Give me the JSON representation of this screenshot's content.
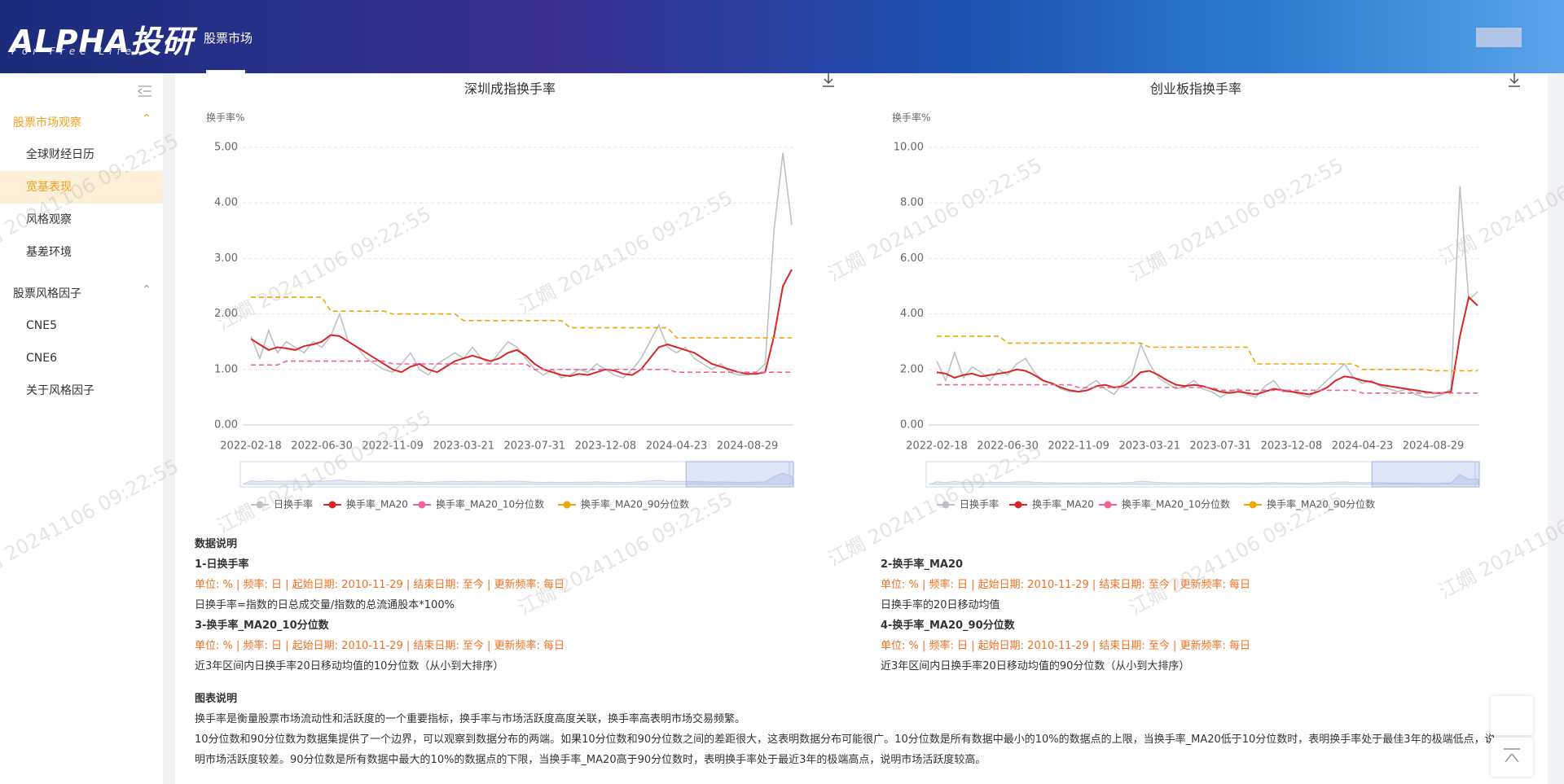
{
  "header": {
    "logo": "ALPHA投研",
    "tagline": "For Free Life",
    "nav": [
      "股票市场"
    ]
  },
  "sidebar": {
    "groups": [
      {
        "title": "股票市场观察",
        "items": [
          "全球财经日历",
          "宽基表现",
          "风格观察",
          "基差环境"
        ]
      },
      {
        "title": "股票风格因子",
        "items": [
          "CNE5",
          "CNE6",
          "关于风格因子"
        ]
      }
    ],
    "active": "宽基表现"
  },
  "watermark": "江嫺 20241106 09:22:55",
  "chart_data": [
    {
      "type": "line",
      "title": "深圳成指换手率",
      "y_label": "换手率%",
      "legend": "bottom",
      "grid": true,
      "categories": [
        "2022-02-18",
        null,
        null,
        null,
        null,
        null,
        null,
        null,
        "2022-06-30",
        null,
        null,
        null,
        null,
        null,
        null,
        null,
        "2022-11-09",
        null,
        null,
        null,
        null,
        null,
        null,
        null,
        "2023-03-21",
        null,
        null,
        null,
        null,
        null,
        null,
        null,
        "2023-07-31",
        null,
        null,
        null,
        null,
        null,
        null,
        null,
        "2023-12-08",
        null,
        null,
        null,
        null,
        null,
        null,
        null,
        "2024-04-23",
        null,
        null,
        null,
        null,
        null,
        null,
        null,
        "2024-08-29",
        null,
        null,
        null,
        null,
        null
      ],
      "ylim": [
        0,
        5
      ],
      "yticks": [
        {
          "value": 0,
          "label": "0.00"
        },
        {
          "value": 1,
          "label": "1.00"
        },
        {
          "value": 2,
          "label": "2.00"
        },
        {
          "value": 3,
          "label": "3.00"
        },
        {
          "value": 4,
          "label": "4.00"
        },
        {
          "value": 5,
          "label": "5.00"
        }
      ],
      "series": [
        {
          "name": "日换手率",
          "color": "#bcc0c9",
          "line_style": "solid",
          "values": [
            1.6,
            1.2,
            1.7,
            1.3,
            1.5,
            1.4,
            1.3,
            1.5,
            1.4,
            1.6,
            2.0,
            1.5,
            1.4,
            1.2,
            1.1,
            1.0,
            0.95,
            1.1,
            1.3,
            1.0,
            0.9,
            1.1,
            1.2,
            1.3,
            1.2,
            1.4,
            1.2,
            1.1,
            1.3,
            1.5,
            1.4,
            1.2,
            1.0,
            0.9,
            1.0,
            0.85,
            0.9,
            1.0,
            0.95,
            1.1,
            1.0,
            0.9,
            0.85,
            1.0,
            1.2,
            1.5,
            1.8,
            1.4,
            1.3,
            1.4,
            1.2,
            1.1,
            1.0,
            1.1,
            0.95,
            0.9,
            0.9,
            0.95,
            1.1,
            3.5,
            4.9,
            3.6
          ]
        },
        {
          "name": "换手率_MA20",
          "color": "#d62728",
          "line_style": "solid",
          "values": [
            1.55,
            1.45,
            1.35,
            1.4,
            1.38,
            1.35,
            1.42,
            1.45,
            1.5,
            1.62,
            1.6,
            1.5,
            1.4,
            1.3,
            1.2,
            1.1,
            1.0,
            0.95,
            1.05,
            1.1,
            1.0,
            0.95,
            1.05,
            1.15,
            1.2,
            1.25,
            1.2,
            1.15,
            1.2,
            1.3,
            1.35,
            1.25,
            1.1,
            1.0,
            0.95,
            0.9,
            0.88,
            0.92,
            0.9,
            0.95,
            1.0,
            0.98,
            0.92,
            0.9,
            1.0,
            1.2,
            1.4,
            1.45,
            1.4,
            1.35,
            1.3,
            1.2,
            1.1,
            1.05,
            1.0,
            0.95,
            0.92,
            0.92,
            0.95,
            1.6,
            2.5,
            2.8
          ]
        },
        {
          "name": "换手率_MA20_10分位数",
          "color": "#f0609a",
          "line_style": "dashed",
          "values": [
            1.08,
            1.08,
            1.08,
            1.08,
            1.15,
            1.15,
            1.15,
            1.15,
            1.15,
            1.15,
            1.15,
            1.15,
            1.15,
            1.15,
            1.15,
            1.15,
            1.1,
            1.1,
            1.1,
            1.1,
            1.1,
            1.1,
            1.1,
            1.1,
            1.1,
            1.1,
            1.1,
            1.1,
            1.1,
            1.1,
            1.1,
            1.1,
            1.0,
            1.0,
            1.0,
            1.0,
            1.0,
            1.0,
            1.0,
            1.0,
            1.0,
            1.0,
            1.0,
            1.0,
            1.0,
            1.0,
            1.0,
            1.0,
            0.95,
            0.95,
            0.95,
            0.95,
            0.95,
            0.95,
            0.95,
            0.95,
            0.95,
            0.95,
            0.95,
            0.95,
            0.95,
            0.95
          ]
        },
        {
          "name": "换手率_MA20_90分位数",
          "color": "#f0a500",
          "line_style": "dashed",
          "values": [
            2.3,
            2.3,
            2.3,
            2.3,
            2.3,
            2.3,
            2.3,
            2.3,
            2.3,
            2.05,
            2.05,
            2.05,
            2.05,
            2.05,
            2.05,
            2.05,
            2.0,
            2.0,
            2.0,
            2.0,
            2.0,
            2.0,
            2.0,
            2.0,
            1.88,
            1.88,
            1.88,
            1.88,
            1.88,
            1.88,
            1.88,
            1.88,
            1.88,
            1.88,
            1.88,
            1.88,
            1.75,
            1.75,
            1.75,
            1.75,
            1.75,
            1.75,
            1.75,
            1.75,
            1.75,
            1.75,
            1.75,
            1.75,
            1.57,
            1.57,
            1.57,
            1.57,
            1.57,
            1.57,
            1.57,
            1.57,
            1.57,
            1.57,
            1.57,
            1.57,
            1.57,
            1.57
          ]
        }
      ]
    },
    {
      "type": "line",
      "title": "创业板指换手率",
      "y_label": "换手率%",
      "legend": "bottom",
      "grid": true,
      "categories": [
        "2022-02-18",
        null,
        null,
        null,
        null,
        null,
        null,
        null,
        "2022-06-30",
        null,
        null,
        null,
        null,
        null,
        null,
        null,
        "2022-11-09",
        null,
        null,
        null,
        null,
        null,
        null,
        null,
        "2023-03-21",
        null,
        null,
        null,
        null,
        null,
        null,
        null,
        "2023-07-31",
        null,
        null,
        null,
        null,
        null,
        null,
        null,
        "2023-12-08",
        null,
        null,
        null,
        null,
        null,
        null,
        null,
        "2024-04-23",
        null,
        null,
        null,
        null,
        null,
        null,
        null,
        "2024-08-29",
        null,
        null,
        null,
        null,
        null
      ],
      "ylim": [
        0,
        10
      ],
      "yticks": [
        {
          "value": 0,
          "label": "0.00"
        },
        {
          "value": 2,
          "label": "2.00"
        },
        {
          "value": 4,
          "label": "4.00"
        },
        {
          "value": 6,
          "label": "6.00"
        },
        {
          "value": 8,
          "label": "8.00"
        },
        {
          "value": 10,
          "label": "10.00"
        }
      ],
      "series": [
        {
          "name": "日换手率",
          "color": "#bcc0c9",
          "line_style": "solid",
          "values": [
            2.3,
            1.6,
            2.6,
            1.7,
            2.1,
            1.9,
            1.6,
            2.0,
            1.8,
            2.2,
            2.4,
            1.9,
            1.6,
            1.5,
            1.3,
            1.2,
            1.2,
            1.4,
            1.6,
            1.3,
            1.1,
            1.5,
            1.8,
            2.9,
            2.2,
            1.7,
            1.5,
            1.3,
            1.4,
            1.6,
            1.3,
            1.2,
            1.0,
            1.2,
            1.3,
            1.1,
            1.0,
            1.4,
            1.6,
            1.2,
            1.2,
            1.1,
            1.0,
            1.3,
            1.6,
            1.9,
            2.2,
            1.7,
            1.5,
            1.6,
            1.4,
            1.3,
            1.2,
            1.3,
            1.1,
            1.0,
            1.0,
            1.1,
            1.3,
            8.6,
            4.5,
            4.8
          ]
        },
        {
          "name": "换手率_MA20",
          "color": "#d62728",
          "line_style": "solid",
          "values": [
            1.9,
            1.85,
            1.7,
            1.8,
            1.85,
            1.75,
            1.8,
            1.85,
            1.9,
            2.0,
            1.95,
            1.8,
            1.6,
            1.5,
            1.35,
            1.25,
            1.2,
            1.25,
            1.4,
            1.45,
            1.35,
            1.4,
            1.6,
            1.9,
            1.95,
            1.8,
            1.6,
            1.45,
            1.4,
            1.45,
            1.4,
            1.3,
            1.2,
            1.15,
            1.2,
            1.15,
            1.1,
            1.2,
            1.3,
            1.25,
            1.2,
            1.15,
            1.1,
            1.2,
            1.35,
            1.6,
            1.75,
            1.7,
            1.6,
            1.55,
            1.45,
            1.4,
            1.35,
            1.3,
            1.25,
            1.2,
            1.15,
            1.15,
            1.2,
            3.2,
            4.6,
            4.3
          ]
        },
        {
          "name": "换手率_MA20_10分位数",
          "color": "#f0609a",
          "line_style": "dashed",
          "values": [
            1.45,
            1.45,
            1.45,
            1.45,
            1.45,
            1.45,
            1.45,
            1.45,
            1.45,
            1.45,
            1.45,
            1.45,
            1.45,
            1.45,
            1.45,
            1.45,
            1.35,
            1.35,
            1.35,
            1.35,
            1.35,
            1.35,
            1.35,
            1.35,
            1.35,
            1.35,
            1.35,
            1.35,
            1.35,
            1.35,
            1.35,
            1.35,
            1.25,
            1.25,
            1.25,
            1.25,
            1.25,
            1.25,
            1.25,
            1.25,
            1.25,
            1.25,
            1.25,
            1.25,
            1.25,
            1.25,
            1.25,
            1.25,
            1.15,
            1.15,
            1.15,
            1.15,
            1.15,
            1.15,
            1.15,
            1.15,
            1.15,
            1.15,
            1.15,
            1.15,
            1.15,
            1.15
          ]
        },
        {
          "name": "换手率_MA20_90分位数",
          "color": "#f0a500",
          "line_style": "dashed",
          "values": [
            3.2,
            3.2,
            3.2,
            3.2,
            3.2,
            3.2,
            3.2,
            3.2,
            2.95,
            2.95,
            2.95,
            2.95,
            2.95,
            2.95,
            2.95,
            2.95,
            2.95,
            2.95,
            2.95,
            2.95,
            2.95,
            2.95,
            2.95,
            2.95,
            2.8,
            2.8,
            2.8,
            2.8,
            2.8,
            2.8,
            2.8,
            2.8,
            2.8,
            2.8,
            2.8,
            2.8,
            2.2,
            2.2,
            2.2,
            2.2,
            2.2,
            2.2,
            2.2,
            2.2,
            2.2,
            2.2,
            2.2,
            2.2,
            2.0,
            2.0,
            2.0,
            2.0,
            2.0,
            2.0,
            2.0,
            2.0,
            1.95,
            1.95,
            1.95,
            1.95,
            1.95,
            1.95
          ]
        }
      ]
    }
  ],
  "data_notes": {
    "title": "数据说明",
    "items": [
      {
        "name": "1-日换手率",
        "meta": "单位: % | 频率: 日 | 起始日期: 2010-11-29 | 结束日期: 至今 | 更新频率: 每日",
        "desc": "日换手率=指数的日总成交量/指数的总流通股本*100%"
      },
      {
        "name": "2-换手率_MA20",
        "meta": "单位: % | 频率: 日 | 起始日期: 2010-11-29 | 结束日期: 至今 | 更新频率: 每日",
        "desc": "日换手率的20日移动均值"
      },
      {
        "name": "3-换手率_MA20_10分位数",
        "meta": "单位: % | 频率: 日 | 起始日期: 2010-11-29 | 结束日期: 至今 | 更新频率: 每日",
        "desc": "近3年区间内日换手率20日移动均值的10分位数（从小到大排序）"
      },
      {
        "name": "4-换手率_MA20_90分位数",
        "meta": "单位: % | 频率: 日 | 起始日期: 2010-11-29 | 结束日期: 至今 | 更新频率: 每日",
        "desc": "近3年区间内日换手率20日移动均值的90分位数（从小到大排序）"
      }
    ]
  },
  "chart_notes": {
    "title": "图表说明",
    "paragraphs": [
      "换手率是衡量股票市场流动性和活跃度的一个重要指标，换手率与市场活跃度高度关联，换手率高表明市场交易频繁。",
      "10分位数和90分位数为数据集提供了一个边界，可以观察到数据分布的两端。如果10分位数和90分位数之间的差距很大，这表明数据分布可能很广。10分位数是所有数据中最小的10%的数据点的上限，当换手率_MA20低于10分位数时，表明换手率处于最佳3年的极端低点，说明市场活跃度较差。90分位数是所有数据中最大的10%的数据点的下限，当换手率_MA20高于90分位数时，表明换手率处于最近3年的极端高点，说明市场活跃度较高。"
    ]
  }
}
